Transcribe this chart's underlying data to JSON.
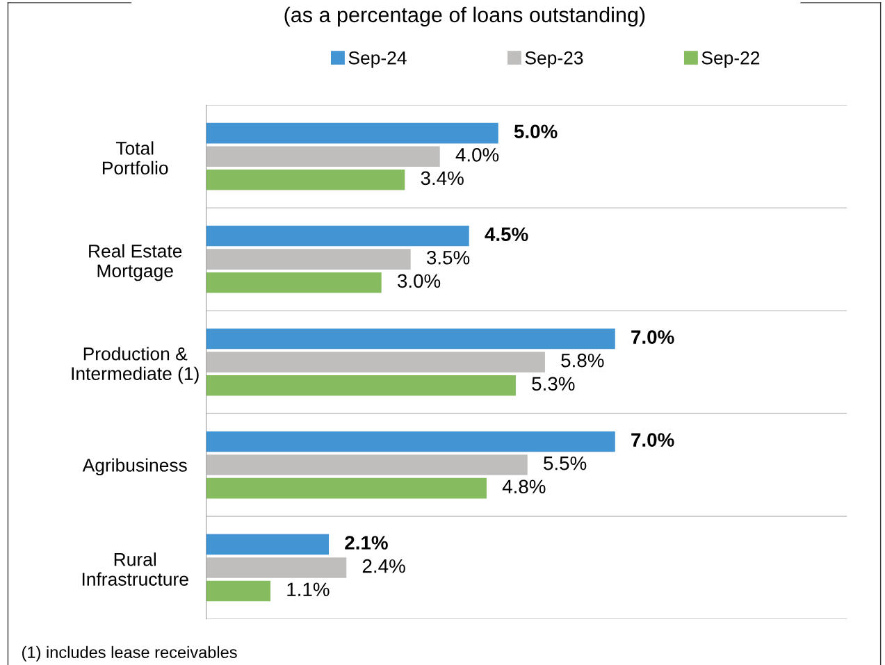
{
  "chart_data": {
    "type": "bar",
    "orientation": "horizontal",
    "title": "(as a percentage of loans outstanding)",
    "categories": [
      "Total\nPortfolio",
      "Real Estate\nMortgage",
      "Production &\nIntermediate (1)",
      "Agribusiness",
      "Rural\nInfrastructure"
    ],
    "series": [
      {
        "name": "Sep-24",
        "color": "#4394d3",
        "values": [
          5.0,
          4.5,
          7.0,
          7.0,
          2.1
        ],
        "value_labels": [
          "5.0%",
          "4.5%",
          "7.0%",
          "7.0%",
          "2.1%"
        ]
      },
      {
        "name": "Sep-23",
        "color": "#bfbebd",
        "values": [
          4.0,
          3.5,
          5.8,
          5.5,
          2.4
        ],
        "value_labels": [
          "4.0%",
          "3.5%",
          "5.8%",
          "5.5%",
          "2.4%"
        ]
      },
      {
        "name": "Sep-22",
        "color": "#86bb60",
        "values": [
          3.4,
          3.0,
          5.3,
          4.8,
          1.1
        ],
        "value_labels": [
          "3.4%",
          "3.0%",
          "5.3%",
          "4.8%",
          "1.1%"
        ]
      }
    ],
    "legend": "top",
    "grid": "y",
    "annotations": [
      "(1) includes lease receivables"
    ]
  }
}
